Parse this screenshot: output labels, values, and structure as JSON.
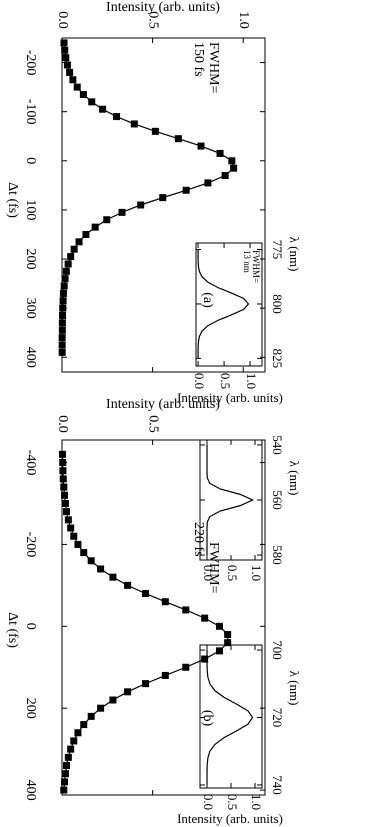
{
  "chart_data": [
    {
      "type": "line",
      "marker": "square",
      "color": "#000000",
      "x_label": "Δt (fs)",
      "y_label": "Intensity (arb. units)",
      "annotations": [
        "FWHM=",
        "150 fs"
      ],
      "panel_label": "(a)",
      "x": [
        -240,
        -225,
        -210,
        -195,
        -180,
        -165,
        -150,
        -135,
        -120,
        -105,
        -90,
        -75,
        -60,
        -45,
        -30,
        -15,
        0,
        15,
        30,
        45,
        60,
        75,
        90,
        105,
        120,
        135,
        150,
        165,
        180,
        195,
        210,
        225,
        240,
        255,
        270,
        285,
        300,
        315,
        330,
        345,
        360,
        375,
        390
      ],
      "values": [
        0.011,
        0.015,
        0.021,
        0.03,
        0.042,
        0.06,
        0.084,
        0.118,
        0.164,
        0.224,
        0.301,
        0.399,
        0.515,
        0.642,
        0.767,
        0.872,
        0.937,
        0.947,
        0.9,
        0.805,
        0.685,
        0.556,
        0.434,
        0.331,
        0.247,
        0.183,
        0.132,
        0.094,
        0.067,
        0.048,
        0.034,
        0.024,
        0.017,
        0.012,
        0.008,
        0.006,
        0.004,
        0.003,
        0.002,
        0.002,
        0.001,
        0.001,
        0.001
      ],
      "xlim": [
        -250,
        430
      ],
      "ylim": [
        0,
        1.12
      ],
      "xticks": [
        -200,
        -100,
        0,
        100,
        200,
        300,
        400
      ],
      "yticks": [
        {
          "value": 0,
          "label": "0.0"
        },
        {
          "value": 0.5,
          "label": "0.5"
        },
        {
          "value": 1,
          "label": "1.0"
        }
      ]
    },
    {
      "type": "line",
      "color": "#000000",
      "x_label": "λ (nm)",
      "y_label": "Intensity (arb. units)",
      "annotations": [
        "FWHM=",
        "13 nm"
      ],
      "x": [
        775,
        777.5,
        780,
        782.5,
        785,
        787.5,
        790,
        792.5,
        795,
        797.5,
        800,
        802.5,
        805,
        807.5,
        810,
        812.5,
        815,
        817.5,
        820,
        822.5,
        825
      ],
      "values": [
        0,
        0,
        0.001,
        0.006,
        0.024,
        0.075,
        0.188,
        0.385,
        0.644,
        0.876,
        0.97,
        0.876,
        0.644,
        0.385,
        0.188,
        0.075,
        0.024,
        0.006,
        0.001,
        0,
        0
      ],
      "xlim": [
        772,
        828.5
      ],
      "ylim": [
        -0.04,
        1.23
      ],
      "xticks": [
        775,
        800,
        825
      ],
      "yticks": [
        {
          "value": 0,
          "label": "0.0"
        },
        {
          "value": 0.5,
          "label": "0.5"
        },
        {
          "value": 1,
          "label": "1.0"
        }
      ]
    },
    {
      "type": "line",
      "marker": "square",
      "color": "#000000",
      "x_label": "Δt (fs)",
      "y_label": "Intensity (arb. units)",
      "annotations": [
        "FWHM=",
        "220 fs"
      ],
      "panel_label": "(b)",
      "x": [
        -420,
        -400,
        -380,
        -360,
        -340,
        -320,
        -300,
        -280,
        -260,
        -240,
        -220,
        -200,
        -180,
        -160,
        -140,
        -120,
        -100,
        -80,
        -60,
        -40,
        -20,
        0,
        20,
        40,
        60,
        80,
        100,
        120,
        140,
        160,
        180,
        200,
        220,
        240,
        260,
        280,
        300,
        320,
        340,
        360,
        380,
        400
      ],
      "values": [
        0.003,
        0.004,
        0.005,
        0.007,
        0.01,
        0.014,
        0.019,
        0.025,
        0.035,
        0.048,
        0.065,
        0.088,
        0.12,
        0.161,
        0.213,
        0.281,
        0.362,
        0.461,
        0.57,
        0.683,
        0.787,
        0.869,
        0.914,
        0.914,
        0.869,
        0.787,
        0.683,
        0.57,
        0.461,
        0.362,
        0.281,
        0.213,
        0.161,
        0.12,
        0.088,
        0.065,
        0.048,
        0.035,
        0.025,
        0.019,
        0.014,
        0.01
      ],
      "xlim": [
        -455,
        412
      ],
      "ylim": [
        0,
        1.12
      ],
      "xticks": [
        -400,
        -200,
        0,
        200,
        400
      ],
      "yticks": [
        {
          "value": 0,
          "label": "0.0"
        },
        {
          "value": 0.5,
          "label": "0.5"
        }
      ]
    },
    {
      "type": "line",
      "color": "#000000",
      "x_label": "λ (nm)",
      "x": [
        540,
        542,
        544,
        546,
        548,
        550,
        552,
        554,
        556,
        558,
        560,
        562,
        564,
        566,
        568,
        570,
        572,
        574,
        576,
        578,
        580
      ],
      "values": [
        0,
        0,
        0,
        0,
        0,
        0,
        0.007,
        0.06,
        0.277,
        0.698,
        0.95,
        0.698,
        0.277,
        0.06,
        0.007,
        0,
        0,
        0,
        0,
        0,
        0
      ],
      "xlim": [
        538.2,
        581.8
      ],
      "ylim": [
        -0.146,
        1.146
      ],
      "xticks": [
        540,
        560,
        580
      ],
      "yticks": [
        {
          "value": 0,
          "label": "0.0"
        },
        {
          "value": 0.5,
          "label": "0.5"
        },
        {
          "value": 1,
          "label": "1.0"
        }
      ]
    },
    {
      "type": "line",
      "color": "#000000",
      "x_label": "λ (nm)",
      "y_label": "Intensity (arb. units)",
      "x": [
        700,
        702,
        704,
        706,
        708,
        710,
        712,
        714,
        716,
        718,
        720,
        722,
        724,
        726,
        728,
        730,
        732,
        734,
        736,
        738,
        740
      ],
      "values": [
        0,
        0,
        0.001,
        0.004,
        0.018,
        0.059,
        0.162,
        0.351,
        0.612,
        0.852,
        0.95,
        0.852,
        0.612,
        0.351,
        0.162,
        0.059,
        0.018,
        0.004,
        0.001,
        0,
        0
      ],
      "xlim": [
        698.5,
        740.9
      ],
      "ylim": [
        -0.146,
        1.146
      ],
      "xticks": [
        700,
        720,
        740
      ],
      "yticks": [
        {
          "value": 0,
          "label": "0.0"
        },
        {
          "value": 0.5,
          "label": "0.5"
        },
        {
          "value": 1,
          "label": "1.0"
        }
      ]
    }
  ]
}
